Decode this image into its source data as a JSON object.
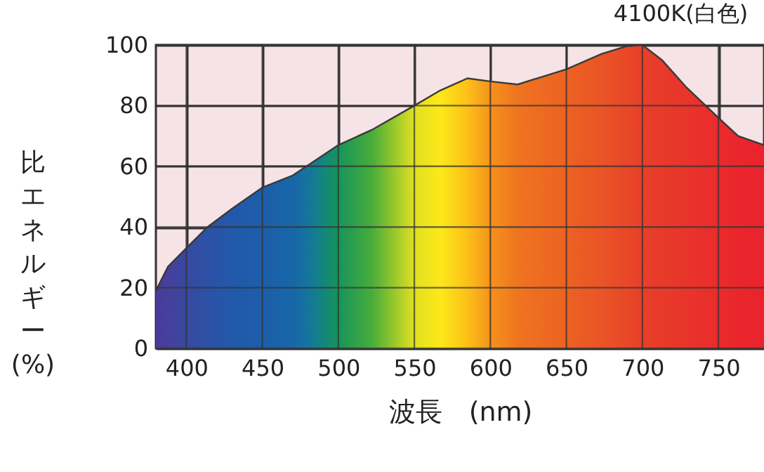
{
  "chart_data": {
    "type": "area",
    "title": "4100K(白色)",
    "xlabel": "波長　(nm)",
    "ylabel": "比エネルギー(%)",
    "x": [
      380,
      388,
      400,
      414,
      430,
      450,
      470,
      482,
      500,
      522,
      550,
      567,
      585,
      600,
      618,
      650,
      673,
      689,
      700,
      713,
      729,
      750,
      763,
      780
    ],
    "series": [
      {
        "colors": [
          "#4a3a98",
          "#45409c",
          "#3848a0",
          "#2c52a6",
          "#2258aa",
          "#1c5eaa",
          "#1866a8",
          "#14789a",
          "#16945a",
          "#48ac3a",
          "#e0e020",
          "#fde81a",
          "#fcc018",
          "#f5921c",
          "#ef7420",
          "#ec6222",
          "#ea5426",
          "#e84828",
          "#e8402a",
          "#e83a2a",
          "#e8342a",
          "#ea2c2c",
          "#ea262c",
          "#ea222c"
        ],
        "values": [
          19,
          27,
          33,
          40,
          46,
          53,
          57,
          61,
          67,
          72,
          80,
          85,
          89,
          88,
          87,
          92,
          97,
          99.5,
          100,
          95,
          86,
          76,
          70,
          67
        ]
      }
    ],
    "xlim": [
      380,
      780
    ],
    "ylim": [
      0,
      100
    ],
    "xticks": [
      400,
      450,
      500,
      550,
      600,
      650,
      700,
      750
    ],
    "yticks": [
      0,
      20,
      40,
      60,
      80,
      100
    ],
    "grid": true
  }
}
